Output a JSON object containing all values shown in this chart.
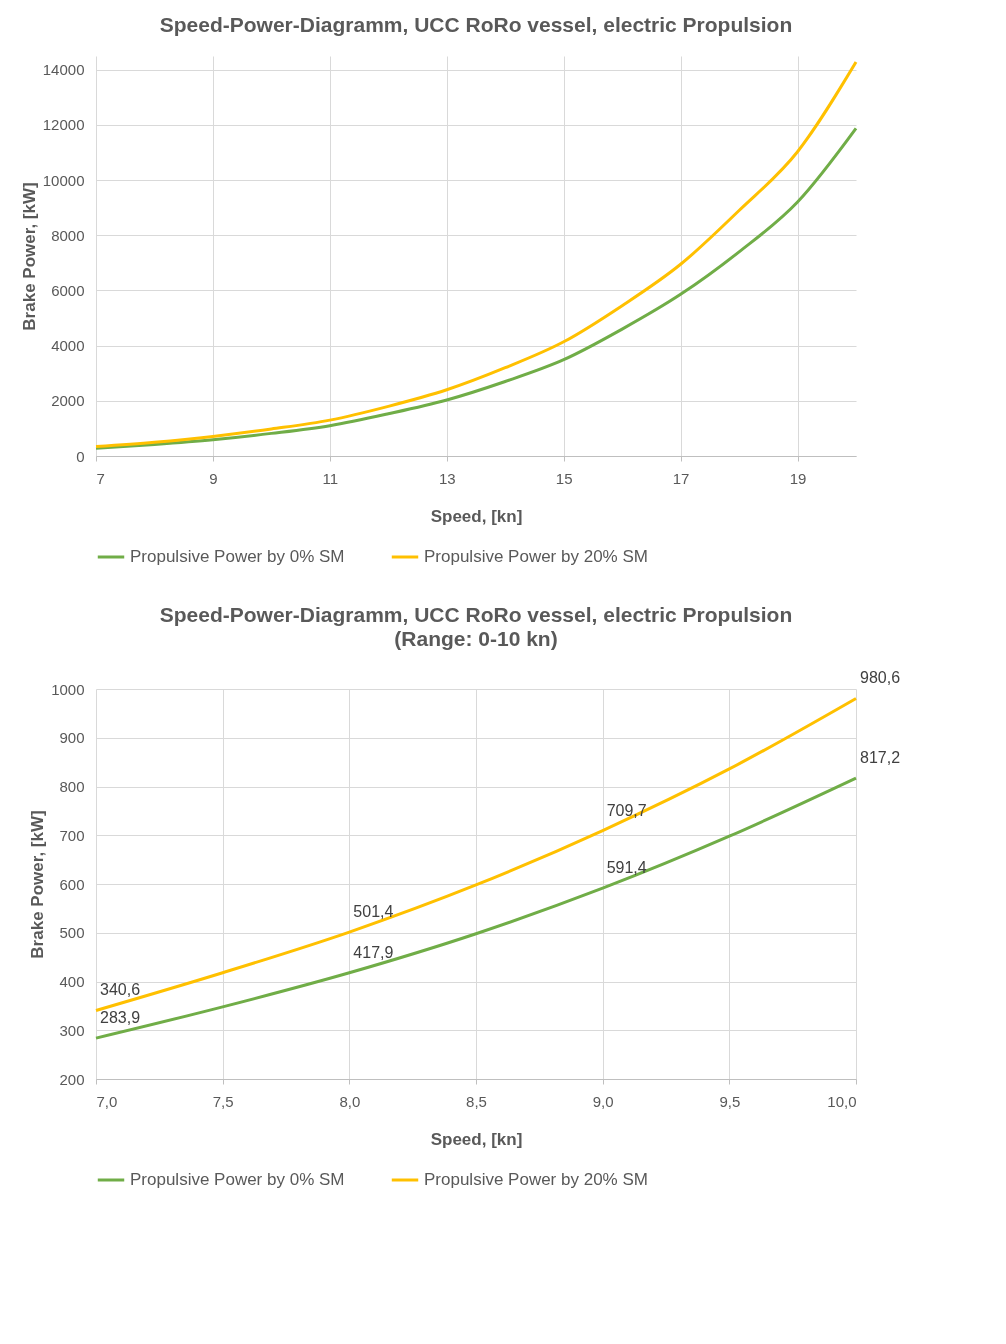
{
  "chart_data": [
    {
      "type": "line",
      "title": "Speed-Power-Diagramm, UCC RoRo vessel, electric Propulsion",
      "xlabel": "Speed, [kn]",
      "ylabel": "Brake Power, [kW]",
      "xlim": [
        7,
        20
      ],
      "xticks": [
        7,
        9,
        11,
        13,
        15,
        17,
        19
      ],
      "ylim": [
        0,
        14500
      ],
      "yticks": [
        0,
        2000,
        4000,
        6000,
        8000,
        10000,
        12000,
        14000
      ],
      "grid": true,
      "legend": "bottom",
      "marker": "none",
      "line_style": "solid",
      "x": [
        7,
        8,
        9,
        10,
        11,
        12,
        13,
        14,
        15,
        16,
        17,
        18,
        19,
        20
      ],
      "series": [
        {
          "name": "Propulsive Power by 0% SM",
          "color": "#70ad47",
          "values": [
            280,
            420,
            590,
            820,
            1100,
            1530,
            2030,
            2700,
            3490,
            4600,
            5860,
            7400,
            9210,
            11880
          ]
        },
        {
          "name": "Propulsive Power by 20% SM",
          "color": "#ffc000",
          "values": [
            340,
            500,
            710,
            980,
            1300,
            1800,
            2400,
            3200,
            4140,
            5450,
            6950,
            8900,
            11030,
            14280
          ]
        }
      ]
    },
    {
      "type": "line",
      "title": "Speed-Power-Diagramm, UCC RoRo vessel, electric Propulsion",
      "subtitle": "(Range: 0-10 kn)",
      "xlabel": "Speed, [kn]",
      "ylabel": "Brake Power, [kW]",
      "xlim": [
        7,
        10
      ],
      "xticks": [
        {
          "value": 7,
          "label": "7,0"
        },
        {
          "value": 7.5,
          "label": "7,5"
        },
        {
          "value": 8,
          "label": "8,0"
        },
        {
          "value": 8.5,
          "label": "8,5"
        },
        {
          "value": 9,
          "label": "9,0"
        },
        {
          "value": 9.5,
          "label": "9,5"
        },
        {
          "value": 10,
          "label": "10,0"
        }
      ],
      "ylim": [
        200,
        1000
      ],
      "yticks": [
        200,
        300,
        400,
        500,
        600,
        700,
        800,
        900,
        1000
      ],
      "grid": true,
      "legend": "bottom",
      "marker": "none",
      "line_style": "solid",
      "x": [
        7,
        7.5,
        8,
        8.5,
        9,
        9.5,
        10
      ],
      "series": [
        {
          "name": "Propulsive Power by 0% SM",
          "color": "#70ad47",
          "values": [
            283.9,
            348,
            417.9,
            498,
            591.4,
            698,
            817.2
          ],
          "value_labels": [
            "283,9",
            null,
            "417,9",
            null,
            "591,4",
            null,
            "817,2"
          ]
        },
        {
          "name": "Propulsive Power by 20% SM",
          "color": "#ffc000",
          "values": [
            340.6,
            418,
            501.4,
            598,
            709.7,
            836,
            980.6
          ],
          "value_labels": [
            "340,6",
            null,
            "501,4",
            null,
            "709,7",
            null,
            "980,6"
          ]
        }
      ]
    }
  ]
}
